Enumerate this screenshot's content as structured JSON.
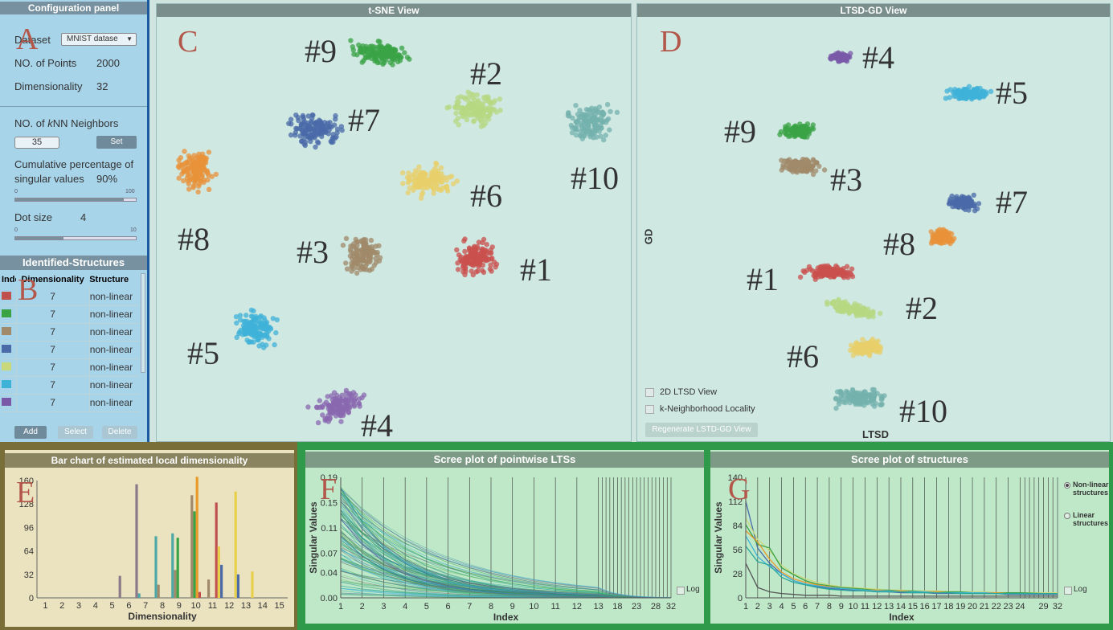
{
  "config": {
    "title": "Configuration panel",
    "dataset_label": "Dataset",
    "dataset_value": "MNIST datase",
    "points_label": "NO. of Points",
    "points_value": "2000",
    "dim_label": "Dimensionality",
    "dim_value": "32",
    "knn_label_pre": "NO. of ",
    "knn_label_k": "k",
    "knn_label_post": "NN Neighbors",
    "knn_value": "35",
    "set_label": "Set",
    "cum_label_1": "Cumulative percentage of",
    "cum_label_2": "singular values",
    "cum_value": "90%",
    "cum_slider": {
      "min": "0",
      "max": "100",
      "value": 90
    },
    "dot_label": "Dot size",
    "dot_value": "4",
    "dot_slider": {
      "min": "0",
      "max": "10",
      "value": 4
    }
  },
  "structures": {
    "title": "Identified-Structures",
    "headers": [
      "Index",
      "Dimensionality",
      "Structure"
    ],
    "rows": [
      {
        "color": "#c0504d",
        "dim": "7",
        "type": "non-linear"
      },
      {
        "color": "#3aa346",
        "dim": "7",
        "type": "non-linear"
      },
      {
        "color": "#a08a6a",
        "dim": "7",
        "type": "non-linear"
      },
      {
        "color": "#4a6aa8",
        "dim": "7",
        "type": "non-linear"
      },
      {
        "color": "#c9d87a",
        "dim": "7",
        "type": "non-linear"
      },
      {
        "color": "#3fb2d8",
        "dim": "7",
        "type": "non-linear"
      },
      {
        "color": "#7a5aa8",
        "dim": "7",
        "type": "non-linear"
      }
    ],
    "add": "Add",
    "select": "Select",
    "delete": "Delete"
  },
  "tsne": {
    "title": "t-SNE View",
    "panel_letter": "C",
    "clusters": [
      {
        "label": "#9",
        "color": "#3aa346"
      },
      {
        "label": "#2",
        "color": "#b5d882"
      },
      {
        "label": "#7",
        "color": "#4a6aa8"
      },
      {
        "label": "#10",
        "color": "#74b2ae"
      },
      {
        "label": "#8",
        "color": "#e8913a"
      },
      {
        "label": "#6",
        "color": "#e8cf6a"
      },
      {
        "label": "#3",
        "color": "#a08a6a"
      },
      {
        "label": "#1",
        "color": "#c9504d"
      },
      {
        "label": "#5",
        "color": "#3fb2d8"
      },
      {
        "label": "#4",
        "color": "#8a68b0"
      }
    ]
  },
  "ltsd": {
    "title": "LTSD-GD View",
    "panel_letter": "D",
    "xlabel": "LTSD",
    "ylabel": "GD",
    "opt1": "2D LTSD View",
    "opt2": "k-Neighborhood Locality",
    "regen": "Regenerate LSTD-GD View",
    "clusters": [
      {
        "label": "#4",
        "color": "#7a5aa8"
      },
      {
        "label": "#5",
        "color": "#3fb2d8"
      },
      {
        "label": "#9",
        "color": "#3aa346"
      },
      {
        "label": "#3",
        "color": "#a08a6a"
      },
      {
        "label": "#7",
        "color": "#4a6aa8"
      },
      {
        "label": "#8",
        "color": "#e8913a"
      },
      {
        "label": "#1",
        "color": "#c9504d"
      },
      {
        "label": "#2",
        "color": "#b5d882"
      },
      {
        "label": "#6",
        "color": "#e8cf6a"
      },
      {
        "label": "#10",
        "color": "#74b2ae"
      }
    ]
  },
  "letters": {
    "a": "A",
    "b": "B",
    "e": "E",
    "f": "F",
    "g": "G"
  },
  "chart_data": [
    {
      "type": "bar",
      "title": "Bar chart of estimated local dimensionality",
      "xlabel": "Dimensionality",
      "ylabel": "",
      "categories": [
        "1",
        "2",
        "3",
        "4",
        "5",
        "6",
        "7",
        "8",
        "9",
        "10",
        "11",
        "12",
        "13",
        "14",
        "15"
      ],
      "yticks": [
        "0",
        "32",
        "64",
        "96",
        "128",
        "160"
      ],
      "ylim": [
        0,
        160
      ],
      "series": [
        {
          "name": "",
          "color": "#8a7a8a",
          "values": [
            0,
            0,
            0,
            0,
            0,
            30,
            155,
            0,
            0,
            0,
            0,
            0,
            0,
            0,
            0
          ]
        },
        {
          "name": "",
          "color": "#4fa8a8",
          "values": [
            0,
            0,
            0,
            0,
            0,
            0,
            6,
            84,
            88,
            0,
            0,
            0,
            0,
            0,
            0
          ]
        },
        {
          "name": "",
          "color": "#a08a6a",
          "values": [
            0,
            0,
            0,
            0,
            0,
            0,
            0,
            18,
            38,
            140,
            25,
            0,
            0,
            0,
            0
          ]
        },
        {
          "name": "",
          "color": "#3aa346",
          "values": [
            0,
            0,
            0,
            0,
            0,
            0,
            0,
            0,
            82,
            118,
            0,
            0,
            0,
            0,
            0
          ]
        },
        {
          "name": "",
          "color": "#e89a2a",
          "values": [
            0,
            0,
            0,
            0,
            0,
            0,
            0,
            0,
            0,
            165,
            0,
            0,
            0,
            0,
            0
          ]
        },
        {
          "name": "",
          "color": "#c0504d",
          "values": [
            0,
            0,
            0,
            0,
            0,
            0,
            0,
            0,
            0,
            8,
            130,
            0,
            0,
            0,
            0
          ]
        },
        {
          "name": "",
          "color": "#e8cf4a",
          "values": [
            0,
            0,
            0,
            0,
            0,
            0,
            0,
            0,
            0,
            0,
            70,
            145,
            36,
            0,
            0
          ]
        },
        {
          "name": "",
          "color": "#4a6aa8",
          "values": [
            0,
            0,
            0,
            0,
            0,
            0,
            0,
            0,
            0,
            0,
            45,
            32,
            0,
            0,
            0
          ]
        }
      ]
    },
    {
      "type": "line",
      "title": "Scree plot of pointwise LTSs",
      "xlabel": "Index",
      "ylabel": "Singular Values",
      "xticks": [
        "1",
        "2",
        "3",
        "4",
        "5",
        "6",
        "7",
        "8",
        "9",
        "10",
        "11",
        "12",
        "13",
        "18",
        "23",
        "28",
        "32"
      ],
      "yticks": [
        "0.00",
        "0.04",
        "0.07",
        "0.11",
        "0.15",
        "0.19"
      ],
      "ylim": [
        0,
        0.19
      ],
      "log_label": "Log"
    },
    {
      "type": "line",
      "title": "Scree plot of structures",
      "xlabel": "Index",
      "ylabel": "Singular Values",
      "xticks": [
        "1",
        "2",
        "3",
        "4",
        "5",
        "6",
        "7",
        "8",
        "9",
        "10",
        "11",
        "12",
        "13",
        "14",
        "15",
        "16",
        "17",
        "18",
        "19",
        "20",
        "21",
        "22",
        "23",
        "24",
        "29",
        "32"
      ],
      "yticks": [
        "0",
        "28",
        "56",
        "84",
        "112",
        "140"
      ],
      "ylim": [
        0,
        140
      ],
      "legend": [
        "Non-linear structures",
        "Linear structures"
      ],
      "log_label": "Log",
      "series": [
        {
          "color": "#4a6aa8",
          "values": [
            112,
            58,
            40,
            28,
            20,
            16,
            13,
            11,
            10,
            9,
            8,
            7,
            7,
            6,
            6,
            6,
            5,
            5,
            5,
            5,
            5,
            5,
            4,
            4,
            4,
            4
          ]
        },
        {
          "color": "#c9d87a",
          "values": [
            92,
            68,
            55,
            38,
            28,
            22,
            18,
            15,
            13,
            12,
            11,
            10,
            9,
            9,
            8,
            8,
            8,
            7,
            7,
            7,
            7,
            6,
            6,
            6,
            6,
            6
          ]
        },
        {
          "color": "#3aa346",
          "values": [
            85,
            62,
            58,
            35,
            27,
            20,
            16,
            14,
            12,
            11,
            10,
            9,
            9,
            8,
            8,
            7,
            7,
            7,
            7,
            6,
            6,
            6,
            6,
            6,
            5,
            5
          ]
        },
        {
          "color": "#e89a2a",
          "values": [
            78,
            65,
            45,
            30,
            22,
            18,
            15,
            13,
            11,
            10,
            9,
            9,
            8,
            8,
            7,
            7,
            7,
            6,
            6,
            6,
            6,
            6,
            5,
            5,
            5,
            5
          ]
        },
        {
          "color": "#3fb2d8",
          "values": [
            72,
            48,
            36,
            28,
            20,
            16,
            14,
            12,
            11,
            10,
            9,
            8,
            8,
            7,
            7,
            7,
            6,
            6,
            6,
            6,
            6,
            5,
            5,
            5,
            5,
            5
          ]
        },
        {
          "color": "#2aa89a",
          "values": [
            60,
            42,
            38,
            24,
            18,
            15,
            12,
            10,
            9,
            8,
            8,
            7,
            7,
            7,
            6,
            6,
            6,
            6,
            5,
            5,
            5,
            5,
            5,
            5,
            5,
            5
          ]
        },
        {
          "color": "#555555",
          "values": [
            40,
            12,
            7,
            5,
            4,
            3,
            3,
            3,
            2,
            2,
            2,
            2,
            2,
            2,
            2,
            2,
            2,
            2,
            2,
            2,
            2,
            2,
            2,
            2,
            2,
            2
          ]
        }
      ]
    }
  ]
}
